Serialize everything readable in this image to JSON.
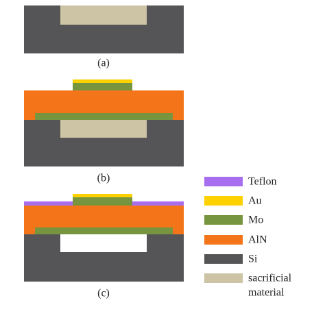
{
  "panels": [
    {
      "label": "(a)"
    },
    {
      "label": "(b)"
    },
    {
      "label": "(c)"
    }
  ],
  "legend": [
    {
      "label": "Teflon"
    },
    {
      "label": "Au"
    },
    {
      "label": "Mo"
    },
    {
      "label": "AlN"
    },
    {
      "label": "Si"
    },
    {
      "label_lines": [
        "sacrificial",
        "material"
      ]
    }
  ]
}
